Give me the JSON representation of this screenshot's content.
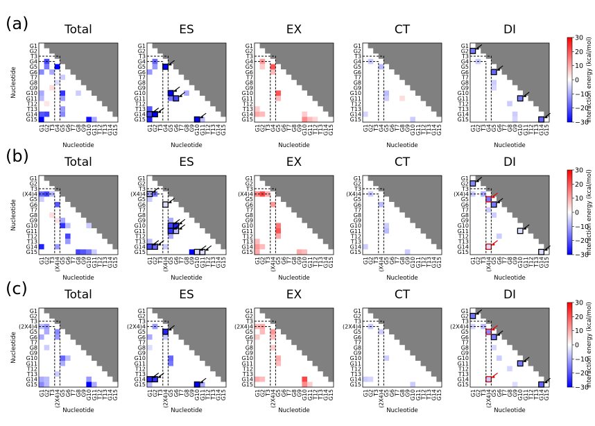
{
  "figure": {
    "row_labels": [
      "(a)",
      "(b)",
      "(c)"
    ],
    "column_titles": [
      "Total",
      "ES",
      "EX",
      "CT",
      "DI"
    ],
    "x_axis_label": "Nucleotide",
    "y_axis_label": "Nucleotide",
    "colorbar": {
      "label": "Interaction energy (kcal/mol)",
      "ticks": [
        "30",
        "20",
        "10",
        "0",
        "−10",
        "−20",
        "−30"
      ],
      "min": -30,
      "max": 30
    },
    "residue_labels_a": [
      "G1",
      "G2",
      "T3",
      "G4",
      "G5",
      "G6",
      "T7",
      "G8",
      "G9",
      "G10",
      "G11",
      "T12",
      "T13",
      "G14",
      "G15"
    ],
    "residue_labels_b": [
      "G1",
      "G2",
      "T3",
      "(X4)4",
      "G5",
      "G6",
      "T7",
      "G8",
      "G9",
      "G10",
      "G11",
      "T12",
      "T13",
      "G14",
      "G15"
    ],
    "residue_labels_c": [
      "G1",
      "G2",
      "T3",
      "(2X4)4",
      "G5",
      "G6",
      "T7",
      "G8",
      "G9",
      "G10",
      "G11",
      "T12",
      "T13",
      "G14",
      "G15"
    ],
    "colors": {
      "negative": "#0000ff",
      "positive": "#ff0000",
      "masked": "#808080",
      "neutral": "#ffffff"
    }
  },
  "chart_data": [
    {
      "type": "heatmap",
      "row": "(a)",
      "title": "Total",
      "xlabel": "Nucleotide",
      "ylabel": "Nucleotide",
      "cells": [
        [
          4,
          2,
          -22
        ],
        [
          5,
          2,
          -16
        ],
        [
          5,
          4,
          -30
        ],
        [
          6,
          1,
          -14
        ],
        [
          6,
          3,
          -10
        ],
        [
          7,
          5,
          -6
        ],
        [
          10,
          1,
          -10
        ],
        [
          10,
          5,
          -24
        ],
        [
          10,
          8,
          -6
        ],
        [
          11,
          1,
          -8
        ],
        [
          11,
          5,
          -12
        ],
        [
          13,
          5,
          -12
        ],
        [
          14,
          1,
          -20
        ],
        [
          14,
          2,
          -22
        ],
        [
          14,
          5,
          -14
        ],
        [
          15,
          1,
          -30
        ],
        [
          15,
          10,
          -28
        ],
        [
          15,
          11,
          -10
        ],
        [
          9,
          3,
          4
        ],
        [
          12,
          2,
          3
        ],
        [
          8,
          4,
          -4
        ]
      ]
    },
    {
      "type": "heatmap",
      "row": "(a)",
      "title": "ES",
      "xlabel": "Nucleotide",
      "ylabel": "Nucleotide",
      "cells": [
        [
          4,
          2,
          -18
        ],
        [
          5,
          2,
          -12
        ],
        [
          5,
          4,
          -30
        ],
        [
          6,
          1,
          -12
        ],
        [
          10,
          5,
          -30
        ],
        [
          10,
          8,
          -10
        ],
        [
          11,
          5,
          -16
        ],
        [
          11,
          6,
          -22
        ],
        [
          13,
          1,
          -20
        ],
        [
          14,
          1,
          -22
        ],
        [
          14,
          2,
          -30
        ],
        [
          15,
          1,
          -26
        ],
        [
          15,
          10,
          -30
        ],
        [
          15,
          11,
          -8
        ]
      ],
      "boxes": [
        [
          5,
          4
        ],
        [
          10,
          5
        ],
        [
          11,
          6
        ],
        [
          14,
          1
        ],
        [
          14,
          2
        ],
        [
          15,
          10
        ]
      ]
    },
    {
      "type": "heatmap",
      "row": "(a)",
      "title": "EX",
      "xlabel": "Nucleotide",
      "ylabel": "Nucleotide",
      "cells": [
        [
          4,
          2,
          12
        ],
        [
          5,
          2,
          6
        ],
        [
          5,
          4,
          20
        ],
        [
          6,
          4,
          8
        ],
        [
          10,
          5,
          20
        ],
        [
          11,
          5,
          8
        ],
        [
          13,
          1,
          6
        ],
        [
          14,
          1,
          10
        ],
        [
          14,
          2,
          8
        ],
        [
          14,
          10,
          6
        ],
        [
          15,
          10,
          14
        ],
        [
          15,
          11,
          8
        ],
        [
          15,
          12,
          5
        ]
      ]
    },
    {
      "type": "heatmap",
      "row": "(a)",
      "title": "CT",
      "xlabel": "Nucleotide",
      "ylabel": "Nucleotide",
      "cells": [
        [
          4,
          2,
          -6
        ],
        [
          5,
          4,
          -8
        ],
        [
          10,
          5,
          -8
        ],
        [
          11,
          5,
          -6
        ],
        [
          11,
          8,
          4
        ],
        [
          14,
          1,
          -5
        ],
        [
          15,
          10,
          -6
        ]
      ]
    },
    {
      "type": "heatmap",
      "row": "(a)",
      "title": "DI",
      "xlabel": "Nucleotide",
      "ylabel": "Nucleotide",
      "cells": [
        [
          2,
          1,
          -16
        ],
        [
          6,
          5,
          -18
        ],
        [
          11,
          10,
          -16
        ],
        [
          15,
          14,
          -18
        ],
        [
          4,
          2,
          -6
        ],
        [
          8,
          5,
          -6
        ],
        [
          9,
          5,
          -5
        ],
        [
          12,
          8,
          -6
        ],
        [
          14,
          9,
          -6
        ],
        [
          15,
          9,
          -5
        ]
      ],
      "boxes": [
        [
          2,
          1
        ],
        [
          6,
          5
        ],
        [
          11,
          10
        ],
        [
          15,
          14
        ]
      ]
    },
    {
      "type": "heatmap",
      "row": "(b)",
      "title": "Total",
      "xlabel": "Nucleotide",
      "ylabel": "Nucleotide",
      "cells": [
        [
          4,
          1,
          -18
        ],
        [
          4,
          2,
          -22
        ],
        [
          4,
          3,
          -8
        ],
        [
          5,
          1,
          -6
        ],
        [
          6,
          4,
          -20
        ],
        [
          9,
          5,
          -10
        ],
        [
          10,
          5,
          -24
        ],
        [
          10,
          6,
          -8
        ],
        [
          10,
          10,
          -6
        ],
        [
          12,
          6,
          -22
        ],
        [
          13,
          6,
          -12
        ],
        [
          14,
          1,
          -26
        ],
        [
          14,
          4,
          -12
        ],
        [
          15,
          8,
          -22
        ],
        [
          15,
          9,
          -20
        ],
        [
          15,
          10,
          -16
        ],
        [
          15,
          11,
          -6
        ],
        [
          8,
          3,
          4
        ],
        [
          9,
          4,
          3
        ]
      ]
    },
    {
      "type": "heatmap",
      "row": "(b)",
      "title": "ES",
      "xlabel": "Nucleotide",
      "ylabel": "Nucleotide",
      "cells": [
        [
          4,
          1,
          -10
        ],
        [
          4,
          2,
          -16
        ],
        [
          5,
          1,
          -6
        ],
        [
          6,
          4,
          -4
        ],
        [
          9,
          5,
          -10
        ],
        [
          10,
          5,
          -22
        ],
        [
          10,
          6,
          -26
        ],
        [
          11,
          5,
          -24
        ],
        [
          11,
          6,
          -8
        ],
        [
          12,
          5,
          -10
        ],
        [
          13,
          1,
          -8
        ],
        [
          14,
          1,
          -22
        ],
        [
          14,
          2,
          -18
        ],
        [
          14,
          4,
          -6
        ],
        [
          15,
          9,
          -30
        ],
        [
          15,
          10,
          -4
        ],
        [
          15,
          11,
          -4
        ]
      ],
      "boxes": [
        [
          4,
          1
        ],
        [
          6,
          4
        ],
        [
          10,
          5
        ],
        [
          10,
          6
        ],
        [
          11,
          5
        ],
        [
          11,
          6
        ],
        [
          14,
          1
        ],
        [
          14,
          2
        ],
        [
          15,
          10
        ],
        [
          15,
          11
        ]
      ]
    },
    {
      "type": "heatmap",
      "row": "(b)",
      "title": "EX",
      "xlabel": "Nucleotide",
      "ylabel": "Nucleotide",
      "cells": [
        [
          4,
          1,
          14
        ],
        [
          4,
          2,
          22
        ],
        [
          4,
          3,
          10
        ],
        [
          6,
          4,
          12
        ],
        [
          10,
          5,
          16
        ],
        [
          11,
          5,
          20
        ],
        [
          12,
          5,
          10
        ],
        [
          13,
          1,
          8
        ],
        [
          14,
          1,
          12
        ],
        [
          14,
          2,
          8
        ],
        [
          15,
          1,
          10
        ],
        [
          15,
          9,
          10
        ],
        [
          15,
          10,
          8
        ]
      ]
    },
    {
      "type": "heatmap",
      "row": "(b)",
      "title": "CT",
      "xlabel": "Nucleotide",
      "ylabel": "Nucleotide",
      "cells": [
        [
          4,
          2,
          -6
        ],
        [
          6,
          4,
          -8
        ],
        [
          10,
          5,
          -6
        ],
        [
          11,
          5,
          -8
        ],
        [
          14,
          1,
          -6
        ],
        [
          15,
          9,
          -6
        ]
      ]
    },
    {
      "type": "heatmap",
      "row": "(b)",
      "title": "DI",
      "xlabel": "Nucleotide",
      "ylabel": "Nucleotide",
      "cells": [
        [
          2,
          1,
          -14
        ],
        [
          4,
          3,
          -10
        ],
        [
          5,
          4,
          -16
        ],
        [
          6,
          5,
          -16
        ],
        [
          11,
          10,
          -4
        ],
        [
          15,
          14,
          -4
        ],
        [
          4,
          1,
          -6
        ],
        [
          7,
          4,
          -6
        ],
        [
          8,
          5,
          -6
        ],
        [
          12,
          6,
          -6
        ],
        [
          14,
          4,
          -4
        ]
      ],
      "boxes": [
        [
          2,
          1
        ],
        [
          6,
          5
        ],
        [
          11,
          10
        ],
        [
          15,
          14
        ]
      ],
      "red_boxes": [
        [
          5,
          4
        ],
        [
          14,
          4
        ]
      ]
    },
    {
      "type": "heatmap",
      "row": "(c)",
      "title": "Total",
      "xlabel": "Nucleotide",
      "ylabel": "Nucleotide",
      "cells": [
        [
          4,
          1,
          -8
        ],
        [
          4,
          2,
          -12
        ],
        [
          5,
          2,
          -10
        ],
        [
          5,
          4,
          -14
        ],
        [
          6,
          1,
          -10
        ],
        [
          6,
          4,
          -12
        ],
        [
          8,
          2,
          -6
        ],
        [
          10,
          5,
          -18
        ],
        [
          10,
          6,
          -8
        ],
        [
          11,
          5,
          -10
        ],
        [
          14,
          1,
          -10
        ],
        [
          14,
          2,
          -8
        ],
        [
          14,
          10,
          -12
        ],
        [
          15,
          1,
          -14
        ],
        [
          15,
          2,
          -8
        ],
        [
          15,
          10,
          -30
        ],
        [
          15,
          11,
          -10
        ],
        [
          13,
          4,
          -6
        ]
      ]
    },
    {
      "type": "heatmap",
      "row": "(c)",
      "title": "ES",
      "xlabel": "Nucleotide",
      "ylabel": "Nucleotide",
      "cells": [
        [
          4,
          2,
          -12
        ],
        [
          5,
          4,
          -26
        ],
        [
          6,
          1,
          -10
        ],
        [
          6,
          4,
          -6
        ],
        [
          10,
          5,
          -18
        ],
        [
          11,
          5,
          -16
        ],
        [
          14,
          1,
          -26
        ],
        [
          14,
          2,
          -24
        ],
        [
          15,
          1,
          -8
        ],
        [
          15,
          10,
          -30
        ],
        [
          15,
          11,
          -10
        ],
        [
          8,
          1,
          -4
        ]
      ],
      "boxes": [
        [
          5,
          4
        ],
        [
          14,
          1
        ],
        [
          14,
          2
        ],
        [
          15,
          10
        ]
      ]
    },
    {
      "type": "heatmap",
      "row": "(c)",
      "title": "EX",
      "xlabel": "Nucleotide",
      "ylabel": "Nucleotide",
      "cells": [
        [
          4,
          1,
          8
        ],
        [
          4,
          2,
          10
        ],
        [
          5,
          2,
          8
        ],
        [
          5,
          4,
          12
        ],
        [
          6,
          1,
          6
        ],
        [
          6,
          4,
          8
        ],
        [
          8,
          4,
          6
        ],
        [
          10,
          5,
          10
        ],
        [
          11,
          5,
          8
        ],
        [
          14,
          1,
          10
        ],
        [
          14,
          2,
          8
        ],
        [
          14,
          10,
          22
        ],
        [
          15,
          10,
          14
        ],
        [
          15,
          11,
          6
        ]
      ]
    },
    {
      "type": "heatmap",
      "row": "(c)",
      "title": "CT",
      "xlabel": "Nucleotide",
      "ylabel": "Nucleotide",
      "cells": [
        [
          4,
          2,
          -6
        ],
        [
          5,
          4,
          -6
        ],
        [
          10,
          5,
          -6
        ],
        [
          14,
          1,
          -6
        ],
        [
          14,
          2,
          -5
        ],
        [
          15,
          10,
          -6
        ]
      ]
    },
    {
      "type": "heatmap",
      "row": "(c)",
      "title": "DI",
      "xlabel": "Nucleotide",
      "ylabel": "Nucleotide",
      "cells": [
        [
          2,
          1,
          -16
        ],
        [
          4,
          3,
          -8
        ],
        [
          5,
          4,
          -14
        ],
        [
          6,
          5,
          -16
        ],
        [
          11,
          10,
          -16
        ],
        [
          15,
          14,
          -18
        ],
        [
          4,
          1,
          -5
        ],
        [
          8,
          5,
          -5
        ],
        [
          10,
          6,
          -6
        ],
        [
          12,
          8,
          -5
        ],
        [
          14,
          4,
          -6
        ],
        [
          15,
          9,
          -4
        ]
      ],
      "boxes": [
        [
          2,
          1
        ],
        [
          6,
          5
        ],
        [
          11,
          10
        ],
        [
          15,
          14
        ]
      ],
      "red_boxes": [
        [
          5,
          4
        ],
        [
          14,
          4
        ]
      ]
    }
  ]
}
